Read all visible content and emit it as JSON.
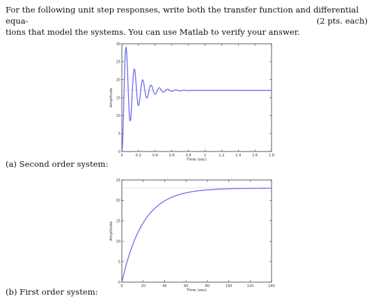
{
  "problem": {
    "line1": "For the following unit step responses, write both the transfer function and differential equa-",
    "line2": "tions that model the systems. You can use Matlab to verify your answer.",
    "points": "(2 pts. each)"
  },
  "part_a": {
    "label": "(a) Second order system:"
  },
  "part_b": {
    "label": "(b) First order system:"
  },
  "chart_data": [
    {
      "type": "line",
      "xlabel": "Time (sec)",
      "ylabel": "Amplitude",
      "xlim": [
        0,
        1.8
      ],
      "ylim": [
        0,
        30
      ],
      "xticks": [
        "0",
        "0.2",
        "0.4",
        "0.6",
        "0.8",
        "1",
        "1.2",
        "1.4",
        "1.6",
        "1.8"
      ],
      "yticks": [
        "0",
        "5",
        "10",
        "15",
        "20",
        "25",
        "30"
      ],
      "steady_state": 17,
      "peak_time": 0.05,
      "peak_value": 29,
      "oscillation_period": 0.1,
      "line_color": "#6c6cf0"
    },
    {
      "type": "line",
      "xlabel": "Time (sec)",
      "ylabel": "Amplitude",
      "xlim": [
        0,
        140
      ],
      "ylim": [
        0,
        25
      ],
      "xticks": [
        "0",
        "20",
        "40",
        "60",
        "80",
        "100",
        "120",
        "140"
      ],
      "yticks": [
        "0",
        "5",
        "10",
        "15",
        "20",
        "25"
      ],
      "steady_state": 23,
      "time_constant": 20,
      "line_color": "#6c6cf0"
    }
  ]
}
